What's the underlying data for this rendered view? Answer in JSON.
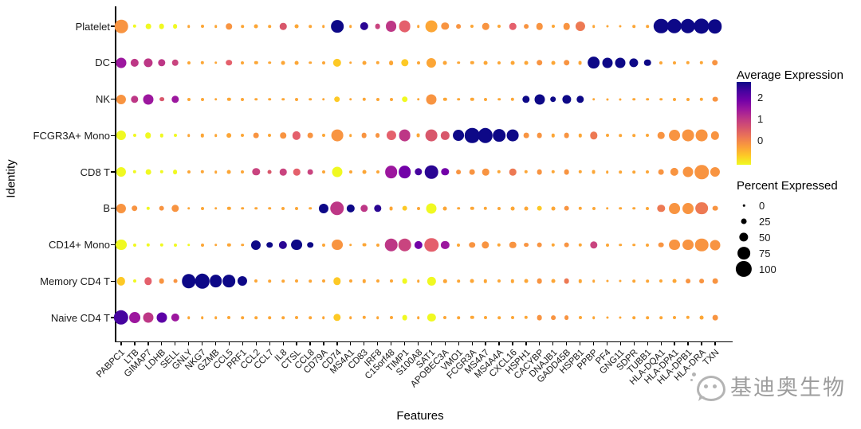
{
  "chart_data": {
    "type": "scatter",
    "subtype": "dotplot-bubble",
    "title": "",
    "xlabel": "Features",
    "ylabel": "Identity",
    "x_categories": [
      "PABPC1",
      "LTB",
      "GIMAP7",
      "LDHB",
      "SELL",
      "GNLY",
      "NKG7",
      "GZMB",
      "CCL5",
      "PRF1",
      "CCL2",
      "CCL7",
      "IL8",
      "CTSL",
      "CCL8",
      "CD79A",
      "CD74",
      "MS4A1",
      "CD83",
      "IRF8",
      "C15orf48",
      "TIMP1",
      "S100A8",
      "SAT1",
      "APOBEC3A",
      "VMO1",
      "FCGR3A",
      "MS4A7",
      "MS4A4A",
      "CXCL16",
      "HSPH1",
      "CACYBP",
      "DNAJB1",
      "GADD45B",
      "HSPB1",
      "PPBP",
      "PF4",
      "GNG11",
      "SDPR",
      "TUBB1",
      "HLA-DQA1",
      "HLA-DPA1",
      "HLA-DPB1",
      "HLA-DRA",
      "TXN"
    ],
    "dot_encoding": "each dot = 'percent_expressed:color_key'; color encodes average expression",
    "palette": {
      "y0": "#F0F921",
      "y1": "#FDC926",
      "o0": "#FCA636",
      "o1": "#F89441",
      "s0": "#ED7953",
      "s1": "#E4606C",
      "p0": "#D8576B",
      "m0": "#C9447F",
      "m1": "#BD3786",
      "pu0": "#9C179E",
      "pu1": "#7201A8",
      "i0": "#5C01A6",
      "i1": "#46039F",
      "n0": "#2A0593",
      "n1": "#0D0887"
    },
    "series": [
      {
        "name": "Platelet",
        "dots": [
          "80:o1",
          "12:y0",
          "25:y0",
          "25:y0",
          "20:y0",
          "8:o0",
          "10:o0",
          "8:o0",
          "30:o1",
          "8:o0",
          "15:o0",
          "8:o0",
          "35:p0",
          "15:o0",
          "8:o0",
          "8:o0",
          "75:n1",
          "8:o0",
          "45:n0",
          "25:m0",
          "65:m1",
          "70:s1",
          "8:o0",
          "70:o0",
          "40:o1",
          "20:o1",
          "10:o0",
          "35:o1",
          "10:o0",
          "35:s1",
          "20:o1",
          "35:o1",
          "10:o0",
          "35:o1",
          "55:s0",
          "8:o0",
          "5:o0",
          "5:o0",
          "8:o0",
          "8:o0",
          "90:n1",
          "90:n1",
          "90:n1",
          "95:n1",
          "85:n1"
        ]
      },
      {
        "name": "DC",
        "dots": [
          "60:pu0",
          "45:m1",
          "50:m1",
          "40:m1",
          "35:m0",
          "10:o0",
          "12:o0",
          "8:o0",
          "30:s1",
          "10:o0",
          "12:o0",
          "8:o0",
          "15:o0",
          "15:o0",
          "8:o0",
          "10:o0",
          "45:y1",
          "8:o0",
          "15:o0",
          "12:o0",
          "20:o0",
          "40:y1",
          "10:o0",
          "55:o0",
          "15:o0",
          "8:o0",
          "12:o0",
          "15:o0",
          "10:o0",
          "15:o0",
          "15:o0",
          "30:o1",
          "15:o0",
          "30:o1",
          "15:o0",
          "75:n1",
          "60:n1",
          "60:n1",
          "50:n1",
          "35:n1",
          "10:o0",
          "10:o0",
          "12:o0",
          "12:o0",
          "30:o1"
        ]
      },
      {
        "name": "NK",
        "dots": [
          "55:o1",
          "40:m1",
          "60:pu0",
          "20:p0",
          "40:pu0",
          "10:o0",
          "10:o0",
          "8:o0",
          "12:o0",
          "10:o0",
          "8:o0",
          "8:o0",
          "8:o0",
          "10:o0",
          "8:o0",
          "8:o0",
          "30:y1",
          "8:o0",
          "12:o0",
          "10:o0",
          "10:o0",
          "30:y0",
          "8:o0",
          "60:o1",
          "12:o0",
          "8:o0",
          "12:o0",
          "10:o0",
          "8:o0",
          "12:o0",
          "40:n1",
          "60:n1",
          "30:n1",
          "50:n1",
          "40:n1",
          "8:o0",
          "5:o0",
          "5:o0",
          "8:o0",
          "8:o0",
          "8:o0",
          "10:o0",
          "10:o0",
          "12:o0",
          "25:o1"
        ]
      },
      {
        "name": "FCGR3A+ Mono",
        "dots": [
          "55:y0",
          "10:y0",
          "30:y0",
          "12:y0",
          "10:y0",
          "8:o0",
          "12:o0",
          "8:o0",
          "20:o0",
          "10:o0",
          "25:o1",
          "10:o0",
          "30:o1",
          "45:s1",
          "25:o1",
          "10:o0",
          "70:o1",
          "8:o0",
          "25:o1",
          "20:o1",
          "55:s1",
          "70:m1",
          "15:o0",
          "70:p0",
          "45:p0",
          "65:n1",
          "90:n1",
          "90:n1",
          "75:n1",
          "70:n1",
          "25:o1",
          "25:o1",
          "12:o0",
          "25:o1",
          "12:o0",
          "40:s0",
          "10:o0",
          "8:o0",
          "8:o0",
          "10:o0",
          "35:o1",
          "65:o1",
          "70:o1",
          "70:o1",
          "45:o1"
        ]
      },
      {
        "name": "CD8 T",
        "dots": [
          "55:y0",
          "12:y0",
          "25:y0",
          "12:y0",
          "20:y0",
          "10:o0",
          "12:o0",
          "8:o0",
          "15:o0",
          "10:o0",
          "40:m0",
          "15:p0",
          "35:m0",
          "35:s1",
          "25:m0",
          "10:o0",
          "60:y0",
          "10:o0",
          "15:o0",
          "10:o0",
          "75:pu0",
          "75:pu1",
          "40:i1",
          "80:n0",
          "40:pu1",
          "20:o1",
          "25:o1",
          "35:o1",
          "12:o0",
          "35:s0",
          "12:o0",
          "25:o1",
          "12:o0",
          "25:o1",
          "12:o0",
          "15:o0",
          "8:o0",
          "8:o0",
          "8:o0",
          "10:o0",
          "25:o1",
          "45:o1",
          "60:o1",
          "85:o1",
          "55:o1"
        ]
      },
      {
        "name": "B",
        "dots": [
          "55:o1",
          "30:o1",
          "12:y0",
          "25:o1",
          "40:o1",
          "8:o0",
          "10:o0",
          "8:o0",
          "12:o0",
          "8:o0",
          "8:o0",
          "8:o0",
          "10:o0",
          "10:o0",
          "8:o0",
          "55:n1",
          "85:m1",
          "45:n1",
          "40:m1",
          "40:n0",
          "15:o0",
          "25:y1",
          "10:o0",
          "60:y0",
          "15:o0",
          "8:o0",
          "12:o0",
          "12:o0",
          "10:o0",
          "15:o0",
          "15:o0",
          "25:y1",
          "15:o0",
          "25:o1",
          "12:o0",
          "10:o0",
          "8:o0",
          "8:o0",
          "8:o0",
          "10:o0",
          "40:s0",
          "65:o1",
          "65:o1",
          "75:s0",
          "25:o1"
        ]
      },
      {
        "name": "CD14+ Mono",
        "dots": [
          "65:y0",
          "10:y0",
          "12:y0",
          "12:y0",
          "10:y0",
          "8:y0",
          "10:o0",
          "8:o0",
          "12:o0",
          "8:o0",
          "55:n1",
          "30:n1",
          "45:n0",
          "65:n1",
          "30:n1",
          "10:o0",
          "65:o1",
          "8:o0",
          "15:o0",
          "10:o0",
          "80:m1",
          "80:m0",
          "45:pu1",
          "85:s1",
          "45:pu0",
          "10:o0",
          "30:o1",
          "40:o1",
          "12:o0",
          "35:o1",
          "20:o1",
          "25:o1",
          "12:o0",
          "25:o1",
          "12:o0",
          "40:m0",
          "10:o0",
          "8:o0",
          "8:o0",
          "10:o0",
          "25:o1",
          "65:o1",
          "65:o1",
          "80:o1",
          "60:o1"
        ]
      },
      {
        "name": "Memory CD4 T",
        "dots": [
          "45:y1",
          "10:y0",
          "40:s1",
          "25:o1",
          "15:o1",
          "85:n1",
          "90:n1",
          "75:n1",
          "75:n1",
          "55:n1",
          "10:o0",
          "8:o0",
          "8:o0",
          "10:o0",
          "8:o0",
          "10:o0",
          "40:y1",
          "10:o0",
          "12:o0",
          "10:o0",
          "10:o0",
          "25:y0",
          "8:o0",
          "45:y0",
          "12:o0",
          "8:o0",
          "15:o0",
          "12:o0",
          "10:o0",
          "12:o0",
          "15:o0",
          "25:o1",
          "15:o0",
          "25:s0",
          "12:o0",
          "8:o0",
          "5:o0",
          "5:o0",
          "8:o0",
          "8:o0",
          "10:o0",
          "15:o0",
          "20:o1",
          "20:o1",
          "25:o1"
        ]
      },
      {
        "name": "Naive CD4 T",
        "dots": [
          "90:i1",
          "65:pu0",
          "60:m1",
          "60:i0",
          "45:pu0",
          "8:o0",
          "8:o0",
          "8:o0",
          "10:o0",
          "8:o0",
          "8:o0",
          "8:o0",
          "8:o0",
          "10:o0",
          "8:o0",
          "8:o0",
          "40:y1",
          "8:o0",
          "12:o0",
          "8:o0",
          "10:o0",
          "25:y0",
          "8:o0",
          "45:y0",
          "10:o0",
          "8:o0",
          "12:o0",
          "10:o0",
          "8:o0",
          "10:o0",
          "12:o0",
          "25:o1",
          "20:o1",
          "20:o1",
          "10:o0",
          "8:o0",
          "5:o0",
          "5:o0",
          "8:o0",
          "8:o0",
          "8:o0",
          "10:o0",
          "12:o0",
          "15:o0",
          "25:o1"
        ]
      }
    ],
    "color_legend": {
      "title": "Average Expression",
      "ticks": [
        "2",
        "1",
        "0"
      ],
      "high_to_low": [
        "#0D0887",
        "#F0F921"
      ]
    },
    "size_legend": {
      "title": "Percent Expressed",
      "items": [
        "0",
        "25",
        "50",
        "75",
        "100"
      ]
    }
  },
  "watermark": {
    "text": "基迪奥生物"
  }
}
